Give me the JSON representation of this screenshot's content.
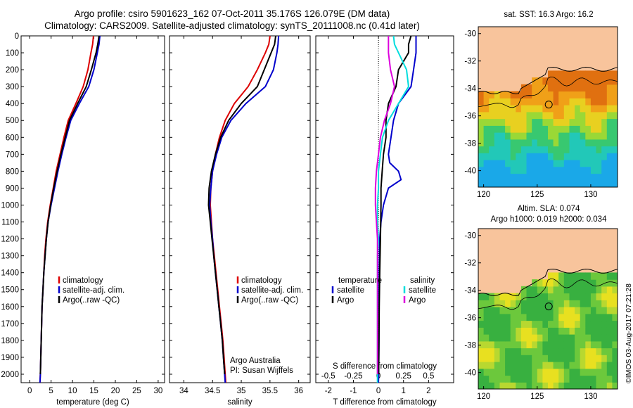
{
  "titles": {
    "line1": "Argo profile: csiro 5901623_162 07-Oct-2011 35.176S 126.079E (DM data)",
    "line2": "Climatology: CARS2009. Satellite-adjusted climatology: synTS_20111008.nc (0.41d later)"
  },
  "map_sst": {
    "title": "sat. SST: 16.3 Argo: 16.2"
  },
  "map_sla": {
    "title1": "Altim. SLA: 0.074",
    "title2": "Argo h1000: 0.019 h2000: 0.034"
  },
  "credit": "©IMOS 03-Aug-2017 07:21:28",
  "colors": {
    "climatology": "#dd0000",
    "satellite": "#0000cc",
    "argo": "#000000",
    "sat_salinity": "#00dddd",
    "argo_salinity": "#dd00dd",
    "land": "#f8c49c"
  },
  "chart_data": [
    {
      "type": "line",
      "xlabel": "temperature (deg C)",
      "xlim": [
        -2,
        31.5
      ],
      "xticks": [
        0,
        5,
        10,
        15,
        20,
        25,
        30
      ],
      "ylim": [
        2050,
        0
      ],
      "yticks": [
        0,
        100,
        200,
        300,
        400,
        500,
        600,
        700,
        800,
        900,
        1000,
        1100,
        1200,
        1300,
        1400,
        1500,
        1600,
        1700,
        1800,
        1900,
        2000
      ],
      "legend": [
        "climatology",
        "satellite-adj. clim.",
        "Argo(..raw -QC)"
      ],
      "series": [
        {
          "name": "climatology",
          "color": "#dd0000",
          "points": [
            [
              14.9,
              0
            ],
            [
              14.7,
              50
            ],
            [
              14.3,
              100
            ],
            [
              13.6,
              200
            ],
            [
              12.5,
              300
            ],
            [
              10.8,
              400
            ],
            [
              9.0,
              500
            ],
            [
              8.0,
              600
            ],
            [
              7.1,
              700
            ],
            [
              6.2,
              800
            ],
            [
              5.5,
              900
            ],
            [
              4.8,
              1000
            ],
            [
              4.2,
              1100
            ],
            [
              3.8,
              1200
            ],
            [
              3.5,
              1300
            ],
            [
              3.3,
              1400
            ],
            [
              3.1,
              1500
            ],
            [
              2.9,
              1600
            ],
            [
              2.8,
              1700
            ],
            [
              2.7,
              1800
            ],
            [
              2.6,
              1900
            ],
            [
              2.5,
              2000
            ],
            [
              2.4,
              2050
            ]
          ]
        },
        {
          "name": "satellite-adj. clim.",
          "color": "#0000cc",
          "points": [
            [
              16.4,
              0
            ],
            [
              16.2,
              50
            ],
            [
              15.8,
              100
            ],
            [
              15.0,
              200
            ],
            [
              13.8,
              300
            ],
            [
              11.6,
              400
            ],
            [
              9.6,
              500
            ],
            [
              8.5,
              600
            ],
            [
              7.5,
              700
            ],
            [
              6.6,
              800
            ],
            [
              5.8,
              900
            ],
            [
              5.0,
              1000
            ],
            [
              4.3,
              1100
            ],
            [
              3.9,
              1200
            ],
            [
              3.6,
              1300
            ],
            [
              3.3,
              1400
            ],
            [
              3.1,
              1500
            ],
            [
              2.9,
              1600
            ],
            [
              2.8,
              1700
            ],
            [
              2.7,
              1800
            ],
            [
              2.6,
              1900
            ],
            [
              2.5,
              2000
            ],
            [
              2.4,
              2050
            ]
          ]
        },
        {
          "name": "Argo(..raw -QC)",
          "color": "#000000",
          "points": [
            [
              16.2,
              0
            ],
            [
              15.9,
              50
            ],
            [
              15.5,
              100
            ],
            [
              14.4,
              200
            ],
            [
              13.2,
              300
            ],
            [
              11.2,
              400
            ],
            [
              9.3,
              500
            ],
            [
              8.3,
              600
            ],
            [
              7.3,
              700
            ],
            [
              6.4,
              800
            ],
            [
              5.6,
              900
            ],
            [
              4.9,
              1000
            ],
            [
              4.3,
              1100
            ],
            [
              3.9,
              1200
            ],
            [
              3.6,
              1300
            ],
            [
              3.3,
              1400
            ],
            [
              3.1,
              1500
            ],
            [
              2.9,
              1600
            ],
            [
              2.8,
              1700
            ],
            [
              2.7,
              1800
            ],
            [
              2.6,
              1900
            ],
            [
              2.5,
              2000
            ]
          ]
        }
      ]
    },
    {
      "type": "line",
      "xlabel": "salinity",
      "xlim": [
        33.75,
        36.2
      ],
      "xticks": [
        34,
        34.5,
        35,
        35.5,
        36
      ],
      "ylim": [
        2050,
        0
      ],
      "legend": [
        "climatology",
        "satellite-adj. clim.",
        "Argo(..raw -QC)"
      ],
      "annotation": [
        "Argo Australia",
        "PI: Susan Wijffels"
      ],
      "series": [
        {
          "name": "climatology",
          "color": "#dd0000",
          "points": [
            [
              35.5,
              0
            ],
            [
              35.48,
              50
            ],
            [
              35.42,
              100
            ],
            [
              35.28,
              200
            ],
            [
              35.12,
              300
            ],
            [
              34.88,
              400
            ],
            [
              34.72,
              500
            ],
            [
              34.62,
              600
            ],
            [
              34.55,
              700
            ],
            [
              34.5,
              800
            ],
            [
              34.47,
              900
            ],
            [
              34.46,
              1000
            ],
            [
              34.48,
              1100
            ],
            [
              34.5,
              1200
            ],
            [
              34.53,
              1300
            ],
            [
              34.56,
              1400
            ],
            [
              34.59,
              1500
            ],
            [
              34.62,
              1600
            ],
            [
              34.65,
              1700
            ],
            [
              34.68,
              1800
            ],
            [
              34.7,
              1900
            ],
            [
              34.72,
              2000
            ],
            [
              34.73,
              2050
            ]
          ]
        },
        {
          "name": "satellite-adj. clim.",
          "color": "#0000cc",
          "points": [
            [
              35.65,
              0
            ],
            [
              35.64,
              50
            ],
            [
              35.62,
              100
            ],
            [
              35.56,
              200
            ],
            [
              35.42,
              300
            ],
            [
              35.08,
              400
            ],
            [
              34.82,
              500
            ],
            [
              34.66,
              600
            ],
            [
              34.57,
              700
            ],
            [
              34.5,
              800
            ],
            [
              34.47,
              900
            ],
            [
              34.45,
              1000
            ],
            [
              34.47,
              1100
            ],
            [
              34.5,
              1200
            ],
            [
              34.52,
              1300
            ],
            [
              34.55,
              1400
            ],
            [
              34.58,
              1500
            ],
            [
              34.61,
              1600
            ],
            [
              34.64,
              1700
            ],
            [
              34.67,
              1800
            ],
            [
              34.69,
              1900
            ],
            [
              34.71,
              2000
            ],
            [
              34.72,
              2050
            ]
          ]
        },
        {
          "name": "Argo(..raw -QC)",
          "color": "#000000",
          "points": [
            [
              35.6,
              0
            ],
            [
              35.58,
              50
            ],
            [
              35.52,
              100
            ],
            [
              35.4,
              200
            ],
            [
              35.28,
              300
            ],
            [
              35.0,
              400
            ],
            [
              34.78,
              500
            ],
            [
              34.64,
              600
            ],
            [
              34.55,
              700
            ],
            [
              34.48,
              800
            ],
            [
              34.44,
              900
            ],
            [
              34.43,
              1000
            ],
            [
              34.46,
              1100
            ],
            [
              34.49,
              1200
            ],
            [
              34.52,
              1300
            ],
            [
              34.55,
              1400
            ],
            [
              34.58,
              1500
            ],
            [
              34.61,
              1600
            ],
            [
              34.64,
              1700
            ],
            [
              34.67,
              1800
            ],
            [
              34.69,
              1900
            ],
            [
              34.71,
              2000
            ]
          ]
        }
      ]
    },
    {
      "type": "line",
      "xlabel": "T difference from climatology",
      "xlabel_top": "S difference from climatology",
      "xlim": [
        -2.5,
        3
      ],
      "xticks": [
        -2,
        -1,
        0,
        1,
        2
      ],
      "xticks_top": [
        -0.5,
        -0.25,
        0,
        0.25,
        0.5
      ],
      "ylim": [
        2050,
        0
      ],
      "legend_left": {
        "title": "temperature",
        "items": [
          "satellite",
          "Argo"
        ]
      },
      "legend_right": {
        "title": "salinity",
        "items": [
          "satellite",
          "Argo"
        ]
      },
      "series": [
        {
          "name": "satellite",
          "group": "temperature",
          "color": "#0000cc",
          "points": [
            [
              1.5,
              0
            ],
            [
              1.5,
              50
            ],
            [
              1.5,
              100
            ],
            [
              1.4,
              200
            ],
            [
              1.3,
              300
            ],
            [
              0.8,
              400
            ],
            [
              0.6,
              500
            ],
            [
              0.5,
              600
            ],
            [
              0.4,
              700
            ],
            [
              0.45,
              750
            ],
            [
              0.8,
              800
            ],
            [
              0.9,
              850
            ],
            [
              0.4,
              900
            ],
            [
              0.2,
              1000
            ],
            [
              0.1,
              1100
            ],
            [
              0.05,
              1200
            ],
            [
              0.03,
              1400
            ],
            [
              0.02,
              1600
            ],
            [
              0.02,
              1800
            ],
            [
              0.01,
              2000
            ],
            [
              0.0,
              2050
            ]
          ]
        },
        {
          "name": "Argo",
          "group": "temperature",
          "color": "#000000",
          "points": [
            [
              1.3,
              0
            ],
            [
              1.2,
              50
            ],
            [
              1.2,
              100
            ],
            [
              0.8,
              200
            ],
            [
              0.7,
              300
            ],
            [
              0.4,
              400
            ],
            [
              0.3,
              500
            ],
            [
              0.3,
              600
            ],
            [
              0.2,
              700
            ],
            [
              0.15,
              800
            ],
            [
              0.1,
              900
            ],
            [
              0.1,
              1000
            ],
            [
              0.08,
              1200
            ],
            [
              0.05,
              1400
            ],
            [
              0.03,
              1600
            ],
            [
              0.02,
              1800
            ],
            [
              0.01,
              2000
            ]
          ]
        },
        {
          "name": "satellite",
          "group": "salinity",
          "color": "#00dddd",
          "points": [
            [
              0.15,
              0
            ],
            [
              0.16,
              50
            ],
            [
              0.2,
              100
            ],
            [
              0.28,
              200
            ],
            [
              0.3,
              300
            ],
            [
              0.2,
              400
            ],
            [
              0.1,
              500
            ],
            [
              0.04,
              600
            ],
            [
              0.02,
              700
            ],
            [
              0.0,
              800
            ],
            [
              0.0,
              900
            ],
            [
              -0.01,
              1000
            ],
            [
              -0.01,
              1100
            ],
            [
              0.0,
              1200
            ],
            [
              -0.01,
              1300
            ],
            [
              -0.01,
              1400
            ],
            [
              -0.01,
              1500
            ],
            [
              -0.01,
              1600
            ],
            [
              -0.01,
              1700
            ],
            [
              -0.01,
              1800
            ],
            [
              -0.01,
              1900
            ],
            [
              -0.01,
              2000
            ],
            [
              -0.01,
              2050
            ]
          ]
        },
        {
          "name": "Argo",
          "group": "salinity",
          "color": "#dd00dd",
          "points": [
            [
              0.1,
              0
            ],
            [
              0.1,
              50
            ],
            [
              0.1,
              100
            ],
            [
              0.12,
              200
            ],
            [
              0.16,
              300
            ],
            [
              0.12,
              400
            ],
            [
              0.06,
              500
            ],
            [
              0.02,
              600
            ],
            [
              0.0,
              700
            ],
            [
              -0.02,
              800
            ],
            [
              -0.03,
              900
            ],
            [
              -0.03,
              1000
            ],
            [
              -0.02,
              1100
            ],
            [
              -0.01,
              1200
            ],
            [
              -0.01,
              1400
            ],
            [
              -0.01,
              1600
            ],
            [
              -0.01,
              1800
            ],
            [
              -0.01,
              2000
            ]
          ]
        }
      ]
    },
    {
      "type": "heatmap",
      "title": "sat. SST: 16.3 Argo: 16.2",
      "xlim": [
        119.5,
        132.5
      ],
      "xticks": [
        120,
        125,
        130
      ],
      "ylim": [
        -41.2,
        -29.5
      ],
      "yticks": [
        -30,
        -32,
        -34,
        -36,
        -38,
        -40
      ],
      "argo_position": [
        126.079,
        -35.176
      ]
    },
    {
      "type": "heatmap",
      "title": "Altim. SLA: 0.074",
      "xlim": [
        119.5,
        132.5
      ],
      "xticks": [
        120,
        125,
        130
      ],
      "ylim": [
        -41.2,
        -29.5
      ],
      "yticks": [
        -30,
        -32,
        -34,
        -36,
        -38,
        -40
      ],
      "argo_position": [
        126.079,
        -35.176
      ]
    }
  ]
}
